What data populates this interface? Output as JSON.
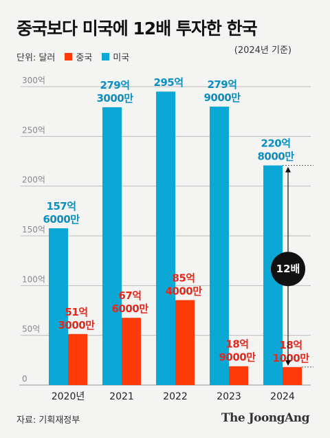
{
  "title": "중국보다 미국에 12배 투자한 한국",
  "subtitle": "(2024년 기준)",
  "legend": {
    "unit_label": "단위: 달러",
    "china": "중국",
    "usa": "미국"
  },
  "annotation": "12배",
  "source": "자료: 기획재정부",
  "brand": "The JoongAng",
  "colors": {
    "china": "#ff3b0a",
    "usa": "#0ba8d6",
    "china_label": "#e8261a",
    "usa_label": "#0a8fc2",
    "grid": "#bbbbbb"
  },
  "chart_data": {
    "type": "bar",
    "categories": [
      "2020년",
      "2021",
      "2022",
      "2023",
      "2024"
    ],
    "series": [
      {
        "name": "미국",
        "values": [
          157.6,
          279.3,
          295,
          279.9,
          220.8
        ],
        "labels": [
          [
            "157억",
            "6000만"
          ],
          [
            "279억",
            "3000만"
          ],
          [
            "295억"
          ],
          [
            "279억",
            "9000만"
          ],
          [
            "220억",
            "8000만"
          ]
        ]
      },
      {
        "name": "중국",
        "values": [
          51.3,
          67.6,
          85.4,
          18.9,
          18.1
        ],
        "labels": [
          [
            "51억",
            "3000만"
          ],
          [
            "67억",
            "6000만"
          ],
          [
            "85억",
            "4000만"
          ],
          [
            "18억",
            "9000만"
          ],
          [
            "18억",
            "1000만"
          ]
        ]
      }
    ],
    "ylim": [
      0,
      300
    ],
    "yticks": [
      0,
      50,
      100,
      150,
      200,
      250,
      300
    ],
    "ytick_labels": [
      "0",
      "50억",
      "100억",
      "150억",
      "200억",
      "250억",
      "300억"
    ],
    "grid": true
  }
}
